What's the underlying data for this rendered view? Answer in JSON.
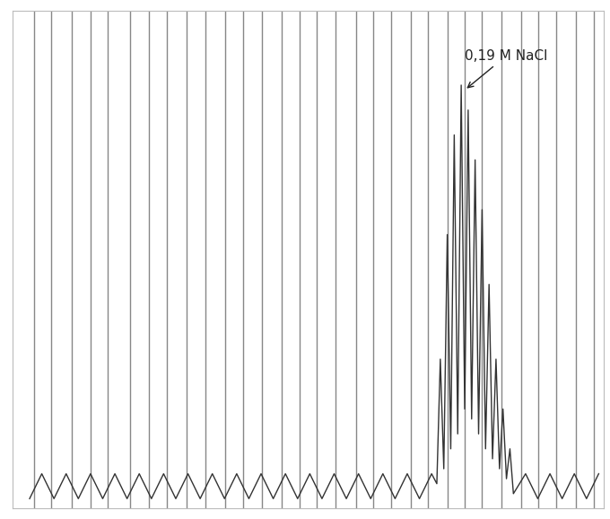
{
  "chart_data": {
    "type": "line",
    "x": [
      20,
      34,
      48,
      62,
      76,
      90,
      104,
      118,
      132,
      146,
      160,
      174,
      188,
      202,
      216,
      230,
      244,
      258,
      272,
      286,
      300,
      314,
      328,
      342,
      356,
      370,
      384,
      398,
      412,
      426,
      440,
      454,
      468,
      482,
      488,
      492,
      496,
      500,
      504,
      508,
      512,
      516,
      520,
      524,
      528,
      532,
      536,
      540,
      544,
      548,
      552,
      556,
      560,
      564,
      568,
      572,
      576,
      590,
      604,
      618,
      632,
      646,
      660,
      674
    ],
    "values": [
      2,
      7,
      2,
      7,
      2,
      7,
      2,
      7,
      2,
      7,
      2,
      7,
      2,
      7,
      2,
      7,
      2,
      7,
      2,
      7,
      2,
      7,
      2,
      7,
      2,
      7,
      2,
      7,
      2,
      7,
      2,
      7,
      2,
      7,
      5,
      30,
      8,
      55,
      12,
      75,
      15,
      85,
      20,
      80,
      18,
      70,
      15,
      60,
      12,
      45,
      10,
      30,
      8,
      20,
      6,
      12,
      3,
      7,
      2,
      7,
      2,
      7,
      2,
      7
    ],
    "color": "#333333",
    "xlim": [
      0,
      680
    ],
    "ylim": [
      0,
      100
    ],
    "xticks": [
      25,
      45,
      68,
      90,
      110,
      135,
      157,
      178,
      200,
      222,
      245,
      265,
      287,
      310,
      330,
      350,
      372,
      395,
      415,
      435,
      458,
      478,
      500,
      520,
      540,
      562,
      585,
      605,
      625,
      648,
      668
    ],
    "yticks": [],
    "grid": true,
    "tick_labels": false,
    "annotation": {
      "text": "0,19 M NaCl",
      "x": 520
    }
  }
}
